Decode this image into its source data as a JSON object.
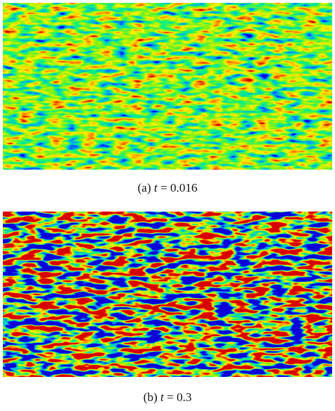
{
  "figures": [
    {
      "label": "(a)",
      "variable": "t",
      "value": "= 0.016"
    },
    {
      "label": "(b)",
      "variable": "t",
      "value": "= 0.3"
    }
  ]
}
